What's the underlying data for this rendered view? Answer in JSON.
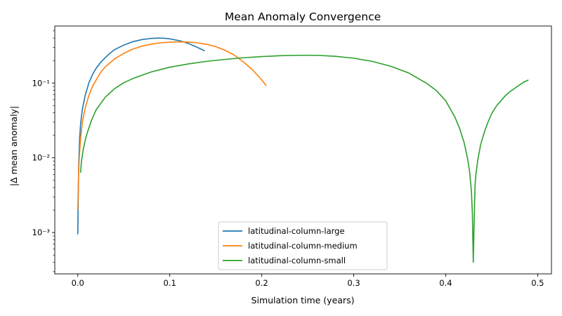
{
  "chart_data": {
    "type": "line",
    "title": "Mean Anomaly Convergence",
    "xlabel": "Simulation time (years)",
    "ylabel": "|Δ mean anomaly|",
    "yscale": "log",
    "xlim": [
      -0.025,
      0.515
    ],
    "ylim": [
      0.00028,
      0.58
    ],
    "xticks": [
      0.0,
      0.1,
      0.2,
      0.3,
      0.4,
      0.5
    ],
    "xtick_labels": [
      "0.0",
      "0.1",
      "0.2",
      "0.3",
      "0.4",
      "0.5"
    ],
    "yticks": [
      0.001,
      0.01,
      0.1
    ],
    "ytick_labels": [
      "10⁻³",
      "10⁻²",
      "10⁻¹"
    ],
    "grid": false,
    "legend_position": "bottom-center",
    "series": [
      {
        "name": "latitudinal-column-large",
        "color": "#1f77b4",
        "x": [
          0.0,
          0.0005,
          0.001,
          0.002,
          0.003,
          0.005,
          0.008,
          0.012,
          0.016,
          0.02,
          0.025,
          0.03,
          0.035,
          0.04,
          0.05,
          0.06,
          0.07,
          0.08,
          0.088,
          0.095,
          0.1,
          0.11,
          0.12,
          0.13,
          0.138
        ],
        "y": [
          0.00095,
          0.003,
          0.008,
          0.018,
          0.028,
          0.045,
          0.068,
          0.1,
          0.13,
          0.158,
          0.19,
          0.22,
          0.25,
          0.28,
          0.322,
          0.358,
          0.382,
          0.396,
          0.4,
          0.397,
          0.39,
          0.37,
          0.34,
          0.3,
          0.27
        ]
      },
      {
        "name": "latitudinal-column-medium",
        "color": "#ff7f0e",
        "x": [
          0.0,
          0.0005,
          0.001,
          0.002,
          0.003,
          0.005,
          0.008,
          0.012,
          0.016,
          0.02,
          0.025,
          0.03,
          0.04,
          0.05,
          0.06,
          0.07,
          0.08,
          0.09,
          0.1,
          0.11,
          0.12,
          0.13,
          0.14,
          0.15,
          0.16,
          0.17,
          0.18,
          0.19,
          0.2,
          0.205
        ],
        "y": [
          0.002,
          0.004,
          0.007,
          0.012,
          0.018,
          0.03,
          0.046,
          0.068,
          0.09,
          0.11,
          0.14,
          0.165,
          0.21,
          0.25,
          0.285,
          0.312,
          0.332,
          0.345,
          0.352,
          0.355,
          0.353,
          0.345,
          0.33,
          0.307,
          0.275,
          0.237,
          0.192,
          0.15,
          0.11,
          0.092
        ]
      },
      {
        "name": "latitudinal-column-small",
        "color": "#2ca02c",
        "x": [
          0.003,
          0.004,
          0.006,
          0.008,
          0.01,
          0.015,
          0.02,
          0.03,
          0.04,
          0.05,
          0.06,
          0.08,
          0.1,
          0.12,
          0.14,
          0.16,
          0.18,
          0.2,
          0.22,
          0.24,
          0.26,
          0.28,
          0.3,
          0.32,
          0.34,
          0.36,
          0.38,
          0.39,
          0.4,
          0.41,
          0.415,
          0.42,
          0.424,
          0.426,
          0.428,
          0.429,
          0.43,
          0.431,
          0.432,
          0.433,
          0.435,
          0.438,
          0.442,
          0.446,
          0.45,
          0.455,
          0.46,
          0.465,
          0.47,
          0.475,
          0.48,
          0.485,
          0.49
        ],
        "y": [
          0.0063,
          0.009,
          0.013,
          0.017,
          0.021,
          0.032,
          0.044,
          0.065,
          0.084,
          0.101,
          0.115,
          0.141,
          0.163,
          0.18,
          0.195,
          0.207,
          0.218,
          0.226,
          0.232,
          0.235,
          0.235,
          0.228,
          0.215,
          0.195,
          0.168,
          0.136,
          0.098,
          0.079,
          0.058,
          0.035,
          0.025,
          0.016,
          0.0095,
          0.0065,
          0.0035,
          0.0018,
          0.0004,
          0.0015,
          0.0045,
          0.0062,
          0.0095,
          0.015,
          0.022,
          0.03,
          0.039,
          0.049,
          0.058,
          0.068,
          0.077,
          0.085,
          0.094,
          0.103,
          0.11
        ]
      }
    ]
  }
}
